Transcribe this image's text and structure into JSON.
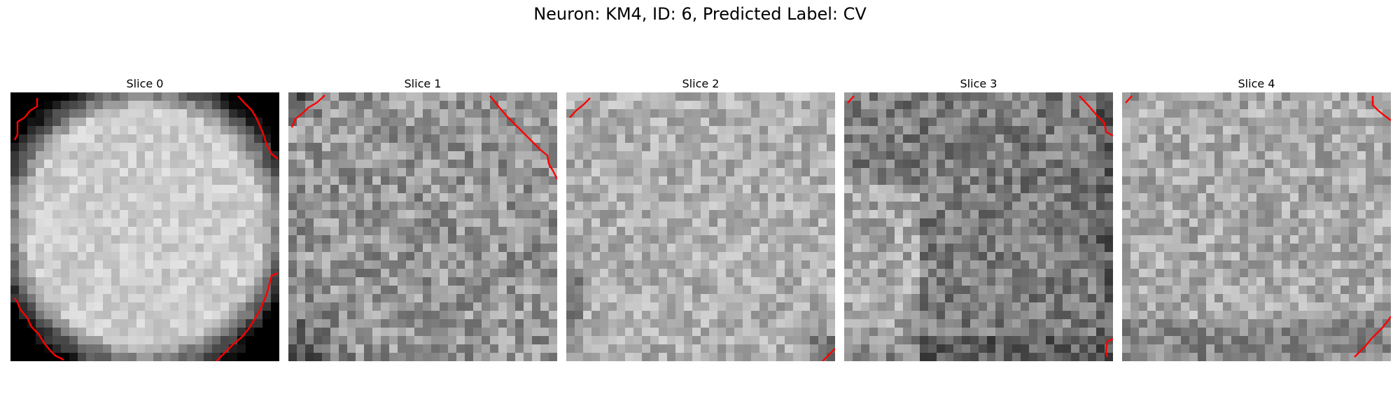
{
  "figure": {
    "title": "Neuron: KM4, ID: 6, Predicted Label: CV",
    "contour_color": "#ff0000",
    "panels": [
      {
        "title": "Slice 0",
        "brightness": "bright",
        "contour": "circle-boundary"
      },
      {
        "title": "Slice 1",
        "brightness": "medium",
        "contour": "top-corners"
      },
      {
        "title": "Slice 2",
        "brightness": "medium-light",
        "contour": "top-left-and-bottom-right-corners"
      },
      {
        "title": "Slice 3",
        "brightness": "medium-dark",
        "contour": "top-corners-and-bottom-right"
      },
      {
        "title": "Slice 4",
        "brightness": "medium-light",
        "contour": "top-corners-and-bottom-right"
      }
    ]
  }
}
